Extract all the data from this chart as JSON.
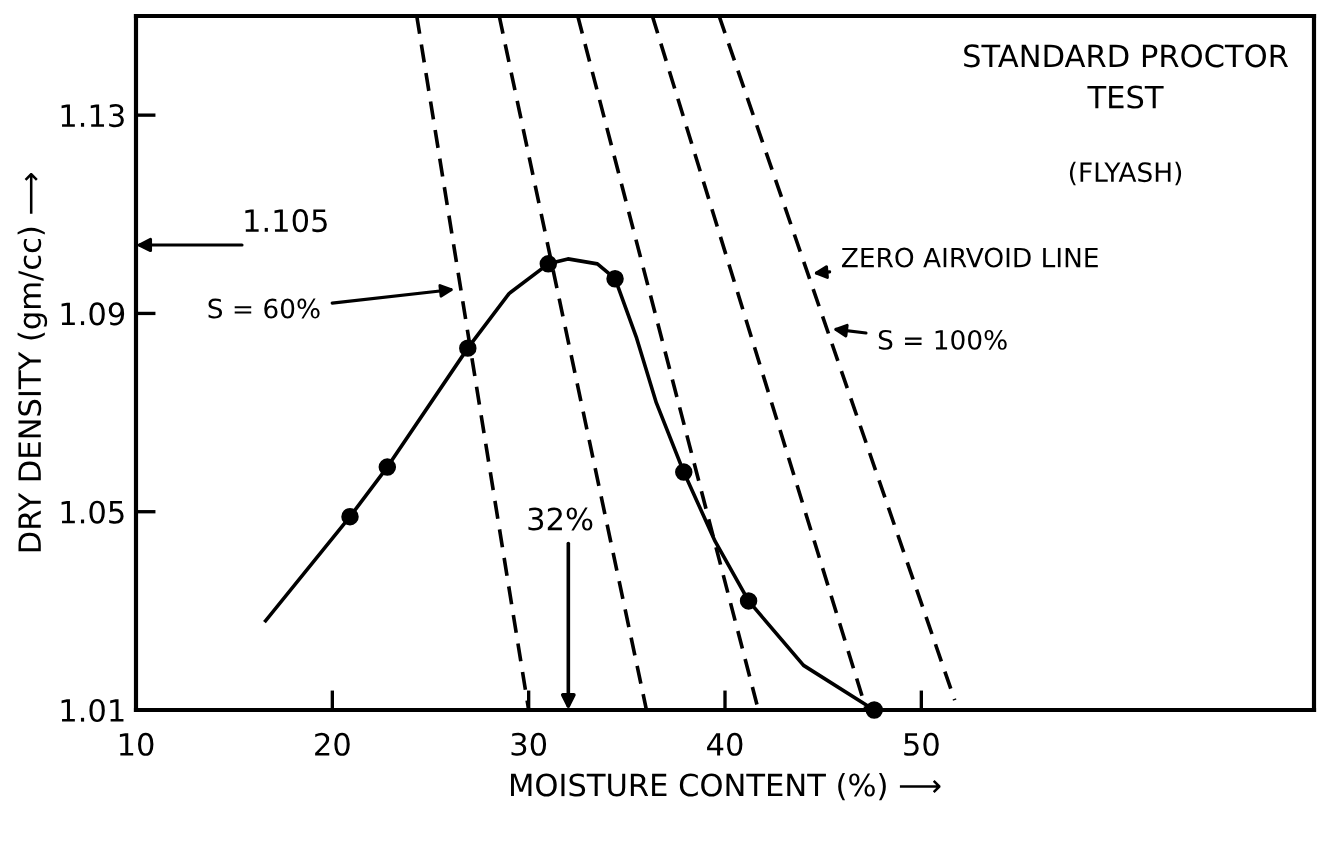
{
  "chart_data": {
    "type": "line",
    "title": "STANDARD PROCTOR\nTEST",
    "subtitle": "(FLYASH)",
    "xlabel": "MOISTURE CONTENT (%) ⟶",
    "ylabel": "DRY DENSITY (gm/cc) ⟶",
    "xlim": [
      10,
      70
    ],
    "ylim": [
      1.01,
      1.15
    ],
    "xticks": [
      10,
      20,
      30,
      40,
      50
    ],
    "yticks": [
      1.01,
      1.05,
      1.09,
      1.13
    ],
    "grid": false,
    "legend": false,
    "series": [
      {
        "type": "scatter",
        "color": "#000000",
        "marker": "circle",
        "x": [
          20.9,
          22.8,
          26.9,
          31.0,
          34.4,
          37.9,
          41.2,
          47.6
        ],
        "values": [
          1.049,
          1.059,
          1.083,
          1.1,
          1.097,
          1.058,
          1.032,
          1.01
        ]
      },
      {
        "color": "#000000",
        "line_style": "solid",
        "x": [
          16.6,
          20.9,
          22.8,
          26.9,
          29.0,
          31.0,
          32.0,
          33.5,
          34.4,
          35.5,
          36.5,
          37.9,
          39.5,
          41.2,
          44.0,
          47.6
        ],
        "values": [
          1.028,
          1.049,
          1.059,
          1.083,
          1.094,
          1.1,
          1.101,
          1.1,
          1.097,
          1.085,
          1.072,
          1.058,
          1.044,
          1.032,
          1.019,
          1.01
        ]
      },
      {
        "type": "line",
        "color": "#000000",
        "line_style": "dashed",
        "x": [
          24.3,
          30.0
        ],
        "values": [
          1.15,
          1.01
        ]
      },
      {
        "type": "line",
        "color": "#000000",
        "line_style": "dashed",
        "x": [
          28.5,
          36.0
        ],
        "values": [
          1.15,
          1.01
        ]
      },
      {
        "type": "line",
        "color": "#000000",
        "line_style": "dashed",
        "x": [
          32.5,
          41.7
        ],
        "values": [
          1.15,
          1.01
        ]
      },
      {
        "type": "line",
        "color": "#000000",
        "line_style": "dashed",
        "x": [
          36.3,
          47.2
        ],
        "values": [
          1.15,
          1.01
        ]
      },
      {
        "type": "line",
        "color": "#000000",
        "line_style": "dashed",
        "x": [
          39.7,
          51.7
        ],
        "values": [
          1.15,
          1.012
        ]
      }
    ],
    "annotations": [
      {
        "text": "S = 60%",
        "x": 26.5,
        "y": 1.095
      },
      {
        "text": "ZERO AIRVOID LINE",
        "x": 44.2,
        "y": 1.098
      },
      {
        "text": "S = 100%",
        "x": 45.2,
        "y": 1.087
      },
      "32%",
      "1.105"
    ]
  }
}
